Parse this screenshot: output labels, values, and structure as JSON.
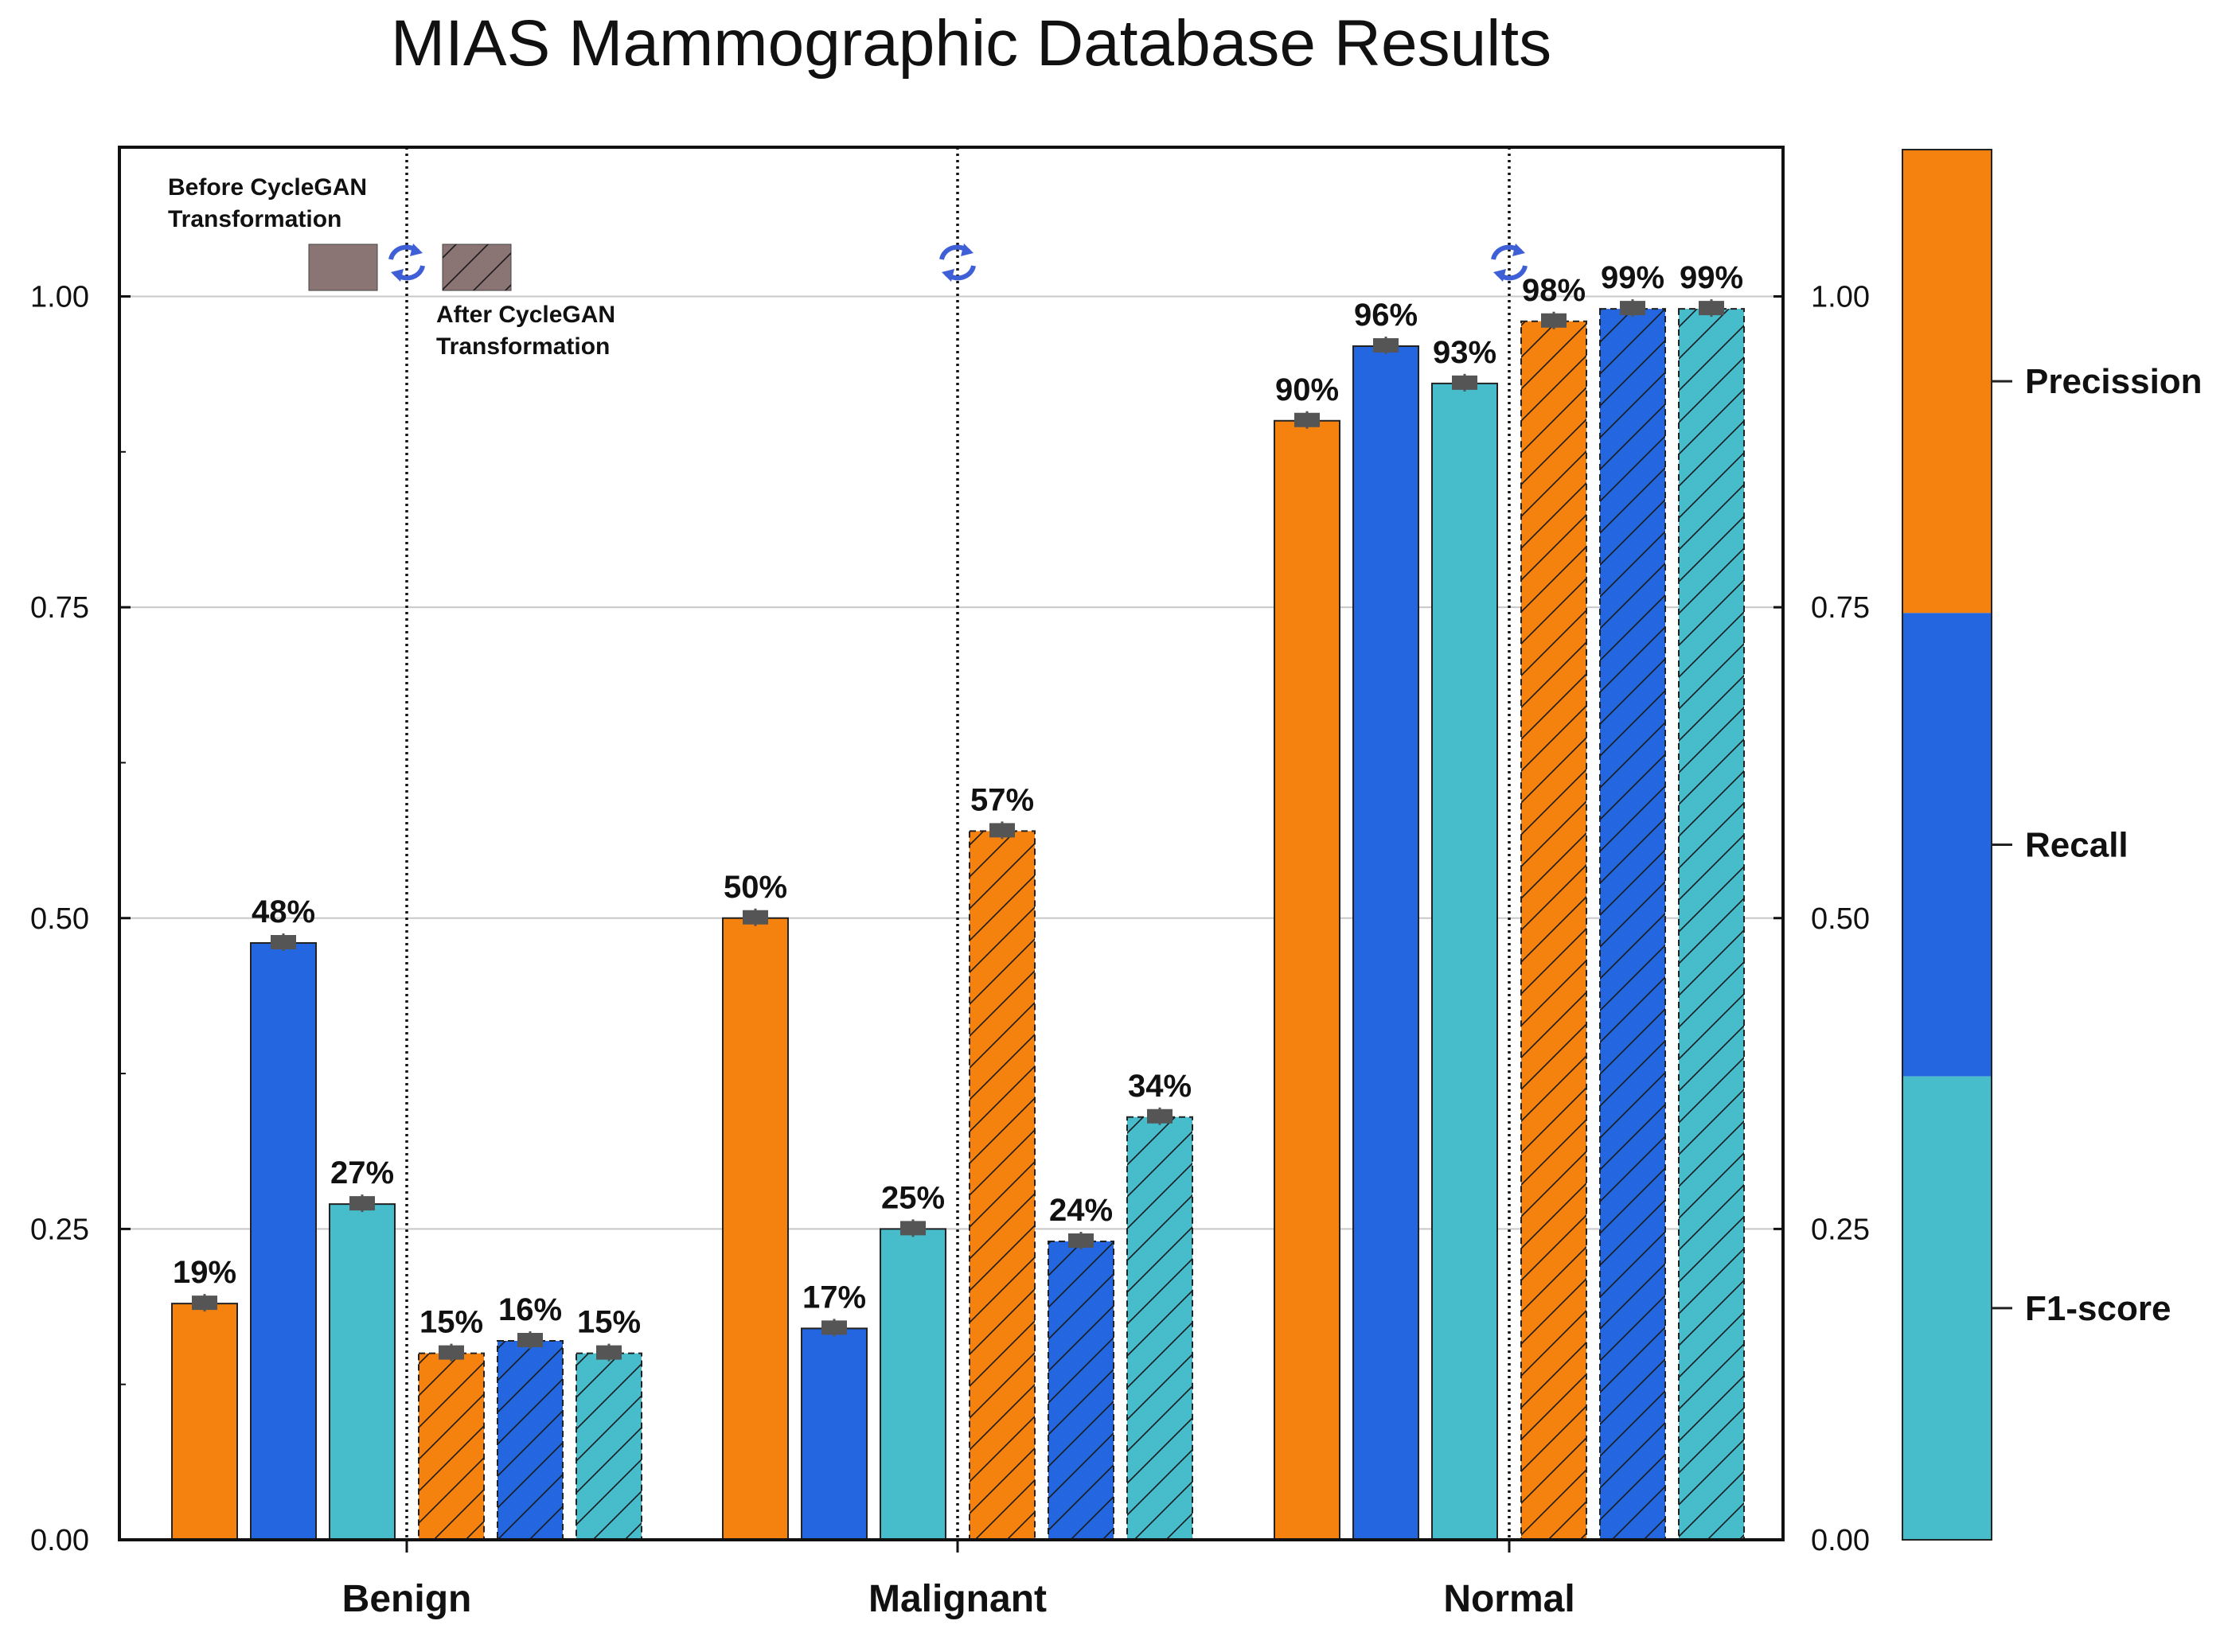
{
  "chart_data": {
    "type": "bar",
    "title": "MIAS Mammographic Database Results",
    "xlabel": "",
    "ylabel": "",
    "ylim": [
      0,
      1.12
    ],
    "yticks": [
      "0.00",
      "0.25",
      "0.50",
      "0.75",
      "1.00"
    ],
    "ytick_values": [
      0,
      0.25,
      0.5,
      0.75,
      1.0
    ],
    "categories": [
      "Benign",
      "Malignant",
      "Normal"
    ],
    "grid": true,
    "series": [
      {
        "name": "Precission (Before CycleGAN)",
        "metric": "Precission",
        "stage": "before",
        "values": [
          0.19,
          0.5,
          0.9
        ],
        "labels": [
          "19%",
          "50%",
          "90%"
        ]
      },
      {
        "name": "Recall (Before CycleGAN)",
        "metric": "Recall",
        "stage": "before",
        "values": [
          0.48,
          0.17,
          0.96
        ],
        "labels": [
          "48%",
          "17%",
          "96%"
        ]
      },
      {
        "name": "F1-score (Before CycleGAN)",
        "metric": "F1-score",
        "stage": "before",
        "values": [
          0.27,
          0.25,
          0.93
        ],
        "labels": [
          "27%",
          "25%",
          "93%"
        ]
      },
      {
        "name": "Precission (After CycleGAN)",
        "metric": "Precission",
        "stage": "after",
        "values": [
          0.15,
          0.57,
          0.98
        ],
        "labels": [
          "15%",
          "57%",
          "98%"
        ]
      },
      {
        "name": "Recall (After CycleGAN)",
        "metric": "Recall",
        "stage": "after",
        "values": [
          0.16,
          0.24,
          0.99
        ],
        "labels": [
          "16%",
          "24%",
          "99%"
        ]
      },
      {
        "name": "F1-score (After CycleGAN)",
        "metric": "F1-score",
        "stage": "after",
        "values": [
          0.15,
          0.34,
          0.99
        ],
        "labels": [
          "15%",
          "34%",
          "99%"
        ]
      }
    ],
    "annotations": {
      "before_line1": "Before CycleGAN",
      "before_line2": "Transformation",
      "after_line1": "After CycleGAN",
      "after_line2": "Transformation"
    },
    "colorbar": {
      "labels": [
        "Precission",
        "Recall",
        "F1-score"
      ],
      "ticks": [
        "0.00",
        "0.25",
        "0.50",
        "0.75",
        "1.00"
      ],
      "tick_values": [
        0,
        0.25,
        0.5,
        0.75,
        1.0
      ]
    },
    "colors": {
      "Precission": "#f5820f",
      "Recall": "#2466e0",
      "F1-score": "#47bccb",
      "grid": "#c8c8c8",
      "axis": "#111111",
      "errorbar": "#555555",
      "legend_swatch": "#8a7474",
      "cycle_icon": "#3f5fd6"
    }
  }
}
